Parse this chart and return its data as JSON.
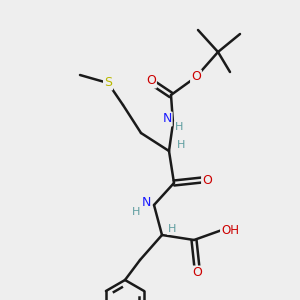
{
  "bg_color": "#eeeeee",
  "atom_colors": {
    "C": "#000000",
    "N": "#1a1aff",
    "O": "#cc0000",
    "S": "#b8b800",
    "H": "#5f9ea0"
  },
  "bond_color": "#1a1a1a",
  "bond_width": 1.8,
  "figsize": [
    3.0,
    3.0
  ],
  "dpi": 100
}
